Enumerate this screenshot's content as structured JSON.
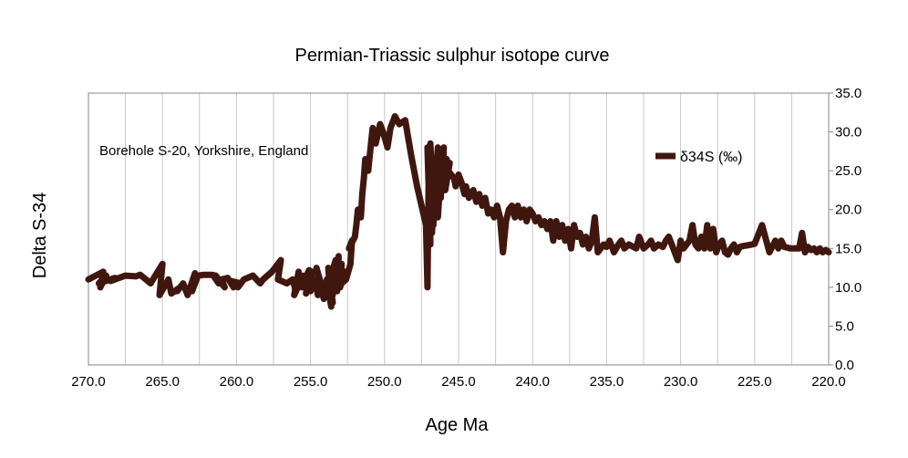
{
  "chart_data": {
    "type": "line",
    "title": "Permian-Triassic sulphur isotope curve",
    "xlabel": "Age Ma",
    "ylabel": "Delta S-34",
    "annotation": "Borehole S-20, Yorkshire, England",
    "xlim": [
      270.0,
      220.0
    ],
    "x_reversed": true,
    "ylim": [
      0.0,
      35.0
    ],
    "y_axis_position": "right",
    "x_ticks": [
      "270.0",
      "265.0",
      "260.0",
      "255.0",
      "250.0",
      "245.0",
      "240.0",
      "235.0",
      "230.0",
      "225.0",
      "220.0"
    ],
    "y_ticks": [
      "0.0",
      "5.0",
      "10.0",
      "15.0",
      "20.0",
      "25.0",
      "30.0",
      "35.0"
    ],
    "grid": "vertical",
    "legend_position": "top-right",
    "colors": {
      "series": "#40170f",
      "grid": "#c8c8c8",
      "axis": "#888888"
    },
    "series": [
      {
        "name": "δ34S (‰)",
        "x": [
          270.0,
          269.0,
          269.2,
          268.8,
          269.3,
          268.2,
          268.5,
          267.5,
          266.8,
          266.5,
          265.8,
          265.0,
          265.2,
          264.6,
          264.4,
          263.8,
          264.0,
          263.6,
          263.3,
          262.8,
          263.0,
          262.6,
          262.2,
          261.6,
          261.2,
          261.4,
          260.8,
          261.0,
          260.6,
          260.2,
          260.4,
          259.7,
          259.9,
          259.5,
          258.9,
          258.4,
          258.2,
          257.6,
          257.0,
          257.2,
          256.6,
          256.2,
          256.0,
          255.8,
          256.1,
          255.5,
          255.6,
          255.1,
          255.3,
          254.9,
          255.0,
          254.7,
          254.5,
          254.3,
          254.6,
          254.1,
          253.9,
          253.6,
          253.8,
          253.5,
          253.7,
          253.3,
          253.5,
          253.1,
          253.2,
          252.9,
          253.0,
          252.7,
          252.9,
          252.6,
          252.3,
          252.2,
          252.4,
          252.0,
          251.9,
          251.8,
          251.6,
          251.5,
          251.4,
          251.3,
          251.1,
          251.0,
          250.8,
          250.6,
          250.3,
          250.1,
          249.8,
          249.6,
          249.3,
          249.0,
          248.6,
          248.2,
          247.8,
          247.5,
          247.2,
          247.1,
          247.0,
          246.9,
          247.1,
          246.8,
          246.9,
          246.7,
          246.6,
          246.8,
          246.4,
          246.5,
          246.3,
          246.4,
          246.1,
          246.2,
          246.0,
          246.1,
          245.8,
          245.9,
          245.6,
          245.7,
          245.5,
          245.3,
          245.2,
          245.0,
          244.8,
          244.6,
          244.5,
          244.3,
          244.0,
          243.8,
          243.6,
          243.4,
          243.2,
          243.0,
          242.8,
          242.6,
          242.4,
          242.2,
          242.0,
          241.8,
          241.6,
          241.4,
          241.2,
          241.0,
          240.8,
          240.6,
          240.4,
          240.2,
          240.0,
          239.8,
          239.6,
          239.4,
          239.2,
          239.0,
          238.8,
          238.6,
          238.4,
          238.2,
          238.0,
          237.8,
          237.6,
          237.4,
          237.2,
          237.0,
          236.8,
          236.6,
          236.4,
          236.2,
          236.0,
          235.8,
          235.6,
          235.4,
          235.2,
          235.0,
          234.8,
          234.5,
          234.2,
          234.0,
          233.8,
          233.5,
          233.2,
          233.0,
          232.8,
          232.5,
          232.2,
          232.0,
          231.8,
          231.5,
          231.2,
          231.0,
          230.8,
          230.5,
          230.2,
          230.0,
          229.8,
          229.6,
          229.4,
          229.2,
          229.0,
          228.8,
          228.6,
          228.4,
          228.2,
          228.0,
          227.8,
          227.6,
          227.4,
          227.2,
          227.0,
          226.8,
          226.6,
          226.4,
          226.2,
          226.0,
          225.8,
          225.5,
          225.2,
          225.0,
          224.5,
          224.0,
          223.6,
          223.4,
          223.2,
          223.0,
          222.8,
          222.6,
          222.4,
          222.2,
          222.0,
          221.8,
          221.6,
          221.4,
          221.2,
          221.0,
          220.8,
          220.6,
          220.4,
          220.2,
          220.0
        ],
        "y": [
          11.0,
          12.0,
          10.0,
          11.5,
          10.5,
          11.2,
          10.8,
          11.5,
          11.4,
          11.6,
          10.5,
          13.0,
          9.0,
          11.0,
          9.2,
          10.0,
          9.5,
          10.5,
          9.0,
          11.8,
          9.5,
          11.5,
          11.6,
          11.6,
          10.5,
          11.5,
          10.0,
          11.0,
          11.2,
          10.0,
          10.8,
          10.5,
          10.0,
          11.0,
          11.5,
          10.5,
          11.0,
          12.0,
          13.5,
          11.0,
          10.5,
          11.0,
          9.5,
          12.0,
          9.0,
          11.5,
          10.0,
          12.2,
          9.2,
          12.0,
          9.5,
          11.0,
          9.0,
          10.5,
          12.5,
          8.5,
          11.0,
          7.5,
          12.5,
          8.0,
          11.0,
          13.5,
          9.0,
          14.0,
          9.5,
          13.0,
          10.0,
          12.0,
          10.5,
          11.0,
          13.0,
          16.0,
          15.0,
          16.5,
          18.0,
          20.0,
          19.0,
          22.0,
          24.0,
          26.5,
          25.0,
          27.0,
          30.5,
          28.5,
          31.0,
          30.0,
          28.0,
          30.5,
          32.0,
          31.0,
          31.5,
          27.0,
          23.0,
          20.5,
          18.0,
          10.0,
          27.0,
          15.5,
          28.0,
          17.0,
          28.5,
          18.0,
          25.0,
          17.0,
          28.0,
          20.0,
          27.0,
          19.0,
          27.5,
          21.5,
          28.0,
          23.0,
          26.5,
          22.5,
          26.0,
          25.0,
          24.5,
          24.0,
          23.0,
          24.5,
          23.5,
          22.0,
          23.0,
          21.5,
          22.5,
          21.0,
          22.0,
          20.5,
          21.5,
          19.5,
          20.0,
          19.0,
          20.5,
          19.0,
          14.5,
          18.5,
          20.0,
          20.5,
          19.0,
          20.5,
          19.0,
          20.0,
          18.5,
          20.0,
          19.5,
          18.5,
          19.0,
          18.0,
          18.5,
          17.5,
          18.5,
          16.0,
          18.5,
          16.5,
          18.0,
          16.0,
          17.5,
          15.0,
          18.0,
          16.5,
          17.0,
          15.5,
          16.5,
          15.0,
          16.0,
          19.0,
          14.5,
          15.0,
          15.5,
          15.2,
          16.0,
          14.5,
          15.5,
          16.0,
          15.0,
          15.5,
          15.2,
          15.0,
          16.5,
          15.0,
          15.5,
          16.0,
          15.0,
          15.5,
          15.2,
          16.0,
          16.5,
          15.0,
          13.5,
          16.0,
          15.0,
          15.5,
          16.0,
          18.0,
          15.5,
          15.0,
          16.5,
          15.0,
          18.0,
          15.0,
          17.5,
          14.5,
          15.5,
          16.0,
          14.5,
          14.2,
          15.0,
          15.5,
          14.5,
          15.2,
          15.3,
          15.4,
          15.5,
          15.6,
          18.0,
          14.5,
          16.0,
          15.0,
          16.0,
          15.2,
          15.1,
          15.0,
          15.0,
          15.0,
          15.0,
          17.0,
          14.5,
          15.2,
          14.8,
          15.0,
          14.5,
          15.0,
          14.5,
          14.8,
          14.5
        ]
      }
    ]
  }
}
